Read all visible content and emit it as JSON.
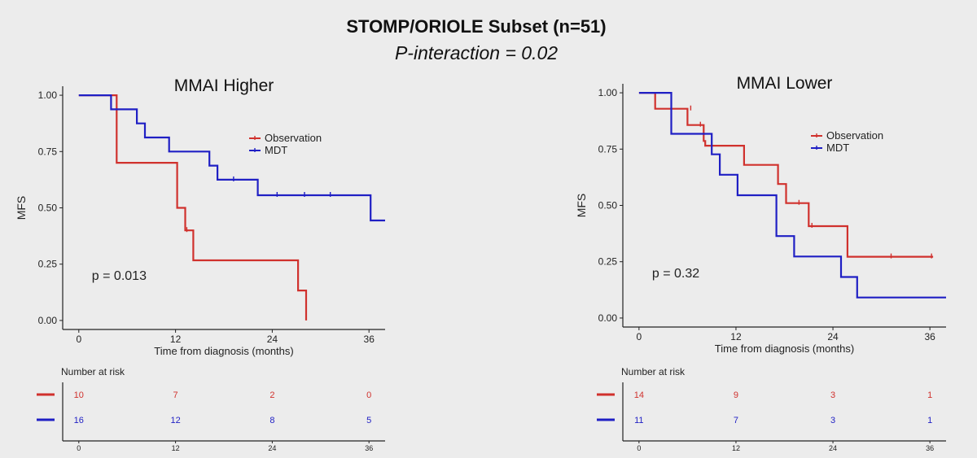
{
  "header": {
    "title": "STOMP/ORIOLE Subset (n=51)",
    "subtitle": "P-interaction = 0.02"
  },
  "colors": {
    "observation": "#d0312d",
    "mdt": "#1f1fc4",
    "axis": "#222222"
  },
  "chart_data": [
    {
      "type": "line",
      "step": true,
      "title": "MMAI Higher",
      "xlabel": "Time from diagnosis (months)",
      "ylabel": "MFS",
      "xlim": [
        -2,
        38
      ],
      "ylim": [
        -0.04,
        1.04
      ],
      "x_ticks": [
        0,
        12,
        24,
        36
      ],
      "y_ticks": [
        0.0,
        0.25,
        0.5,
        0.75,
        1.0
      ],
      "y_tick_labels": [
        "0.00",
        "0.25",
        "0.50",
        "0.75",
        "1.00"
      ],
      "legend": {
        "position": "top-right"
      },
      "p_value": "p = 0.013",
      "grid": false,
      "series": [
        {
          "name": "Observation",
          "color_key": "observation",
          "points": [
            [
              0,
              1.0
            ],
            [
              4.7,
              1.0
            ],
            [
              4.7,
              0.7
            ],
            [
              12.2,
              0.7
            ],
            [
              12.2,
              0.5
            ],
            [
              13.2,
              0.5
            ],
            [
              13.2,
              0.4
            ],
            [
              14.2,
              0.4
            ],
            [
              14.2,
              0.267
            ],
            [
              27.2,
              0.267
            ],
            [
              27.2,
              0.133
            ],
            [
              28.2,
              0.133
            ],
            [
              28.2,
              0.0
            ]
          ],
          "censored": [
            [
              13.4,
              0.4
            ]
          ]
        },
        {
          "name": "MDT",
          "color_key": "mdt",
          "points": [
            [
              0,
              1.0
            ],
            [
              4,
              1.0
            ],
            [
              4,
              0.9375
            ],
            [
              7.2,
              0.9375
            ],
            [
              7.2,
              0.875
            ],
            [
              8.2,
              0.875
            ],
            [
              8.2,
              0.8125
            ],
            [
              11.2,
              0.8125
            ],
            [
              11.2,
              0.75
            ],
            [
              16.2,
              0.75
            ],
            [
              16.2,
              0.6875
            ],
            [
              17.2,
              0.6875
            ],
            [
              17.2,
              0.625
            ],
            [
              22.2,
              0.625
            ],
            [
              22.2,
              0.556
            ],
            [
              36.2,
              0.556
            ],
            [
              36.2,
              0.444
            ],
            [
              38,
              0.444
            ]
          ],
          "censored": [
            [
              19.2,
              0.625
            ],
            [
              24.6,
              0.556
            ],
            [
              28,
              0.556
            ],
            [
              31.2,
              0.556
            ]
          ]
        }
      ],
      "risk_table": {
        "header": "Number at risk",
        "times": [
          0,
          12,
          24,
          36
        ],
        "rows": [
          {
            "name": "Observation",
            "color_key": "observation",
            "values": [
              "10",
              "7",
              "2",
              "0"
            ]
          },
          {
            "name": "MDT",
            "color_key": "mdt",
            "values": [
              "16",
              "12",
              "8",
              "5"
            ]
          }
        ]
      }
    },
    {
      "type": "line",
      "step": true,
      "title": "MMAI Lower",
      "xlabel": "Time from diagnosis (months)",
      "ylabel": "MFS",
      "xlim": [
        -2,
        38
      ],
      "ylim": [
        -0.04,
        1.04
      ],
      "x_ticks": [
        0,
        12,
        24,
        36
      ],
      "y_ticks": [
        0.0,
        0.25,
        0.5,
        0.75,
        1.0
      ],
      "y_tick_labels": [
        "0.00",
        "0.25",
        "0.50",
        "0.75",
        "1.00"
      ],
      "legend": {
        "position": "top-right"
      },
      "p_value": "p = 0.32",
      "grid": false,
      "series": [
        {
          "name": "Observation",
          "color_key": "observation",
          "points": [
            [
              0,
              1.0
            ],
            [
              2,
              1.0
            ],
            [
              2,
              0.929
            ],
            [
              6,
              0.929
            ],
            [
              6,
              0.857
            ],
            [
              8,
              0.857
            ],
            [
              8,
              0.786
            ],
            [
              8.2,
              0.786
            ],
            [
              8.2,
              0.765
            ],
            [
              13,
              0.765
            ],
            [
              13,
              0.68
            ],
            [
              17.2,
              0.68
            ],
            [
              17.2,
              0.595
            ],
            [
              18.2,
              0.595
            ],
            [
              18.2,
              0.51
            ],
            [
              21,
              0.51
            ],
            [
              21,
              0.408
            ],
            [
              25.8,
              0.408
            ],
            [
              25.8,
              0.272
            ],
            [
              36.4,
              0.272
            ]
          ],
          "censored": [
            [
              6.4,
              0.929
            ],
            [
              7.6,
              0.857
            ],
            [
              19.8,
              0.51
            ],
            [
              21.4,
              0.408
            ],
            [
              31.2,
              0.272
            ],
            [
              36.2,
              0.272
            ]
          ]
        },
        {
          "name": "MDT",
          "color_key": "mdt",
          "points": [
            [
              0,
              1.0
            ],
            [
              4,
              1.0
            ],
            [
              4,
              0.818
            ],
            [
              9,
              0.818
            ],
            [
              9,
              0.727
            ],
            [
              10,
              0.727
            ],
            [
              10,
              0.636
            ],
            [
              12.2,
              0.636
            ],
            [
              12.2,
              0.545
            ],
            [
              17,
              0.545
            ],
            [
              17,
              0.364
            ],
            [
              19.2,
              0.364
            ],
            [
              19.2,
              0.273
            ],
            [
              25,
              0.273
            ],
            [
              25,
              0.182
            ],
            [
              27,
              0.182
            ],
            [
              27,
              0.091
            ],
            [
              38,
              0.091
            ]
          ],
          "censored": []
        }
      ],
      "risk_table": {
        "header": "Number at risk",
        "times": [
          0,
          12,
          24,
          36
        ],
        "rows": [
          {
            "name": "Observation",
            "color_key": "observation",
            "values": [
              "14",
              "9",
              "3",
              "1"
            ]
          },
          {
            "name": "MDT",
            "color_key": "mdt",
            "values": [
              "11",
              "7",
              "3",
              "1"
            ]
          }
        ]
      }
    }
  ]
}
